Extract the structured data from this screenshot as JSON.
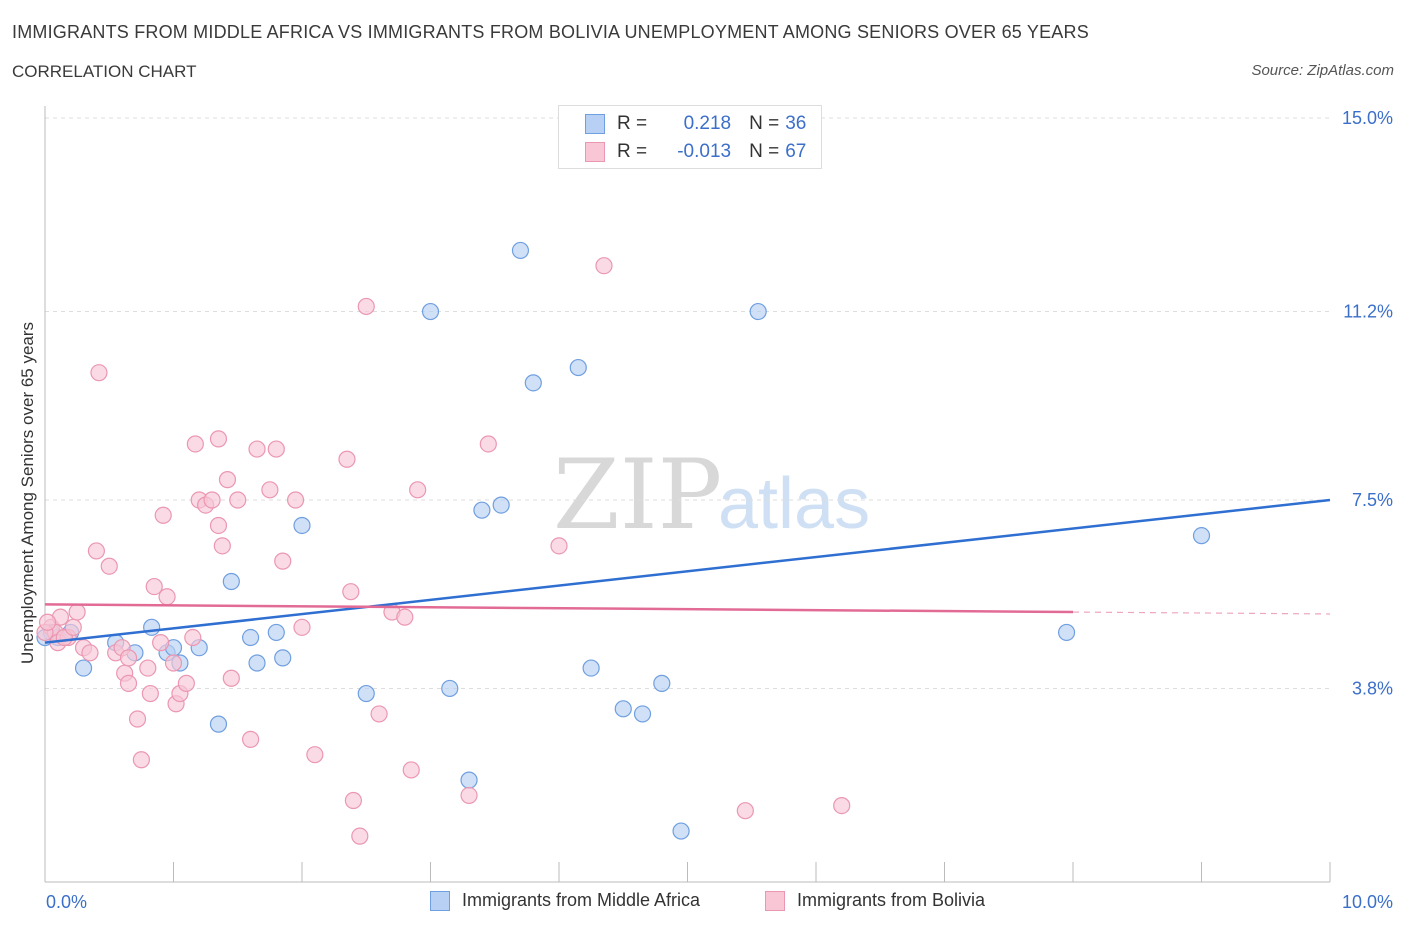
{
  "header": {
    "title": "IMMIGRANTS FROM MIDDLE AFRICA VS IMMIGRANTS FROM BOLIVIA UNEMPLOYMENT AMONG SENIORS OVER 65 YEARS",
    "subtitle": "CORRELATION CHART",
    "source": "Source: ZipAtlas.com"
  },
  "watermark": "ZIPatlas",
  "legend": {
    "r_label": "R =",
    "n_label": "N =",
    "rows": [
      {
        "r": "0.218",
        "n": "36"
      },
      {
        "r": "-0.013",
        "n": "67"
      }
    ]
  },
  "colors": {
    "blue_fill": "#b7d0f3",
    "blue_stroke": "#6f9fe0",
    "blue_line": "#2f6fd1",
    "pink_fill": "#f8c6d5",
    "pink_stroke": "#eb97b1",
    "pink_line": "#e26b95",
    "axis_label": "#3b6fc9",
    "grid": "#dddddd"
  },
  "chart_data": {
    "type": "scatter",
    "xlabel": "",
    "ylabel": "Unemployment Among Seniors over 65 years",
    "xlim": [
      0,
      10
    ],
    "ylim": [
      0,
      15
    ],
    "x_tick_labels": [
      "0.0%",
      "10.0%"
    ],
    "y_tick_labels": [
      "3.8%",
      "7.5%",
      "11.2%",
      "15.0%"
    ],
    "y_ticks": [
      3.8,
      7.5,
      11.2,
      15.0
    ],
    "grid": true,
    "legend_position": "top-center",
    "series": [
      {
        "name": "Immigrants from Middle Africa",
        "color": "blue",
        "points": [
          [
            0.05,
            4.9
          ],
          [
            0.1,
            4.8
          ],
          [
            0.2,
            4.9
          ],
          [
            0.3,
            4.2
          ],
          [
            0.55,
            4.7
          ],
          [
            0.7,
            4.5
          ],
          [
            0.83,
            5.0
          ],
          [
            0.95,
            4.5
          ],
          [
            1.05,
            4.3
          ],
          [
            1.0,
            4.6
          ],
          [
            1.2,
            4.6
          ],
          [
            1.35,
            3.1
          ],
          [
            1.45,
            5.9
          ],
          [
            1.6,
            4.8
          ],
          [
            1.65,
            4.3
          ],
          [
            1.8,
            4.9
          ],
          [
            1.85,
            4.4
          ],
          [
            2.0,
            7.0
          ],
          [
            2.5,
            3.7
          ],
          [
            3.0,
            11.2
          ],
          [
            3.15,
            3.8
          ],
          [
            3.3,
            2.0
          ],
          [
            3.4,
            7.3
          ],
          [
            3.55,
            7.4
          ],
          [
            3.7,
            12.4
          ],
          [
            3.8,
            9.8
          ],
          [
            4.15,
            10.1
          ],
          [
            4.25,
            4.2
          ],
          [
            4.5,
            3.4
          ],
          [
            4.65,
            3.3
          ],
          [
            4.8,
            3.9
          ],
          [
            4.95,
            1.0
          ],
          [
            5.55,
            11.2
          ],
          [
            7.95,
            4.9
          ],
          [
            9.0,
            6.8
          ],
          [
            0.0,
            4.8
          ]
        ]
      },
      {
        "name": "Immigrants from Bolivia",
        "color": "pink",
        "points": [
          [
            0.05,
            5.0
          ],
          [
            0.08,
            4.9
          ],
          [
            0.1,
            4.7
          ],
          [
            0.12,
            5.2
          ],
          [
            0.18,
            4.8
          ],
          [
            0.25,
            5.3
          ],
          [
            0.3,
            4.6
          ],
          [
            0.35,
            4.5
          ],
          [
            0.4,
            6.5
          ],
          [
            0.42,
            10.0
          ],
          [
            0.5,
            6.2
          ],
          [
            0.55,
            4.5
          ],
          [
            0.6,
            4.6
          ],
          [
            0.62,
            4.1
          ],
          [
            0.65,
            3.9
          ],
          [
            0.65,
            4.4
          ],
          [
            0.72,
            3.2
          ],
          [
            0.75,
            2.4
          ],
          [
            0.8,
            4.2
          ],
          [
            0.82,
            3.7
          ],
          [
            0.85,
            5.8
          ],
          [
            0.9,
            4.7
          ],
          [
            0.92,
            7.2
          ],
          [
            0.95,
            5.6
          ],
          [
            1.0,
            4.3
          ],
          [
            1.02,
            3.5
          ],
          [
            1.05,
            3.7
          ],
          [
            1.1,
            3.9
          ],
          [
            1.15,
            4.8
          ],
          [
            1.17,
            8.6
          ],
          [
            1.2,
            7.5
          ],
          [
            1.25,
            7.4
          ],
          [
            1.3,
            7.5
          ],
          [
            1.35,
            8.7
          ],
          [
            1.35,
            7.0
          ],
          [
            1.38,
            6.6
          ],
          [
            1.42,
            7.9
          ],
          [
            1.45,
            4.0
          ],
          [
            1.5,
            7.5
          ],
          [
            1.6,
            2.8
          ],
          [
            1.65,
            8.5
          ],
          [
            1.75,
            7.7
          ],
          [
            1.8,
            8.5
          ],
          [
            1.85,
            6.3
          ],
          [
            1.95,
            7.5
          ],
          [
            2.0,
            5.0
          ],
          [
            2.1,
            2.5
          ],
          [
            2.35,
            8.3
          ],
          [
            2.38,
            5.7
          ],
          [
            2.4,
            1.6
          ],
          [
            2.45,
            0.9
          ],
          [
            2.5,
            11.3
          ],
          [
            2.6,
            3.3
          ],
          [
            2.7,
            5.3
          ],
          [
            2.8,
            5.2
          ],
          [
            2.85,
            2.2
          ],
          [
            2.9,
            7.7
          ],
          [
            3.3,
            1.7
          ],
          [
            3.45,
            8.6
          ],
          [
            4.0,
            6.6
          ],
          [
            4.35,
            12.1
          ],
          [
            5.45,
            1.4
          ],
          [
            6.2,
            1.5
          ],
          [
            0.0,
            4.9
          ],
          [
            0.02,
            5.1
          ],
          [
            0.15,
            4.8
          ],
          [
            0.22,
            5.0
          ]
        ]
      }
    ],
    "trend_lines": [
      {
        "series": "Immigrants from Middle Africa",
        "x": [
          0,
          10
        ],
        "y": [
          4.7,
          7.5
        ]
      },
      {
        "series": "Immigrants from Bolivia",
        "x": [
          0,
          8
        ],
        "y": [
          5.45,
          5.3
        ],
        "dashed_extension": [
          8,
          10
        ]
      }
    ]
  }
}
